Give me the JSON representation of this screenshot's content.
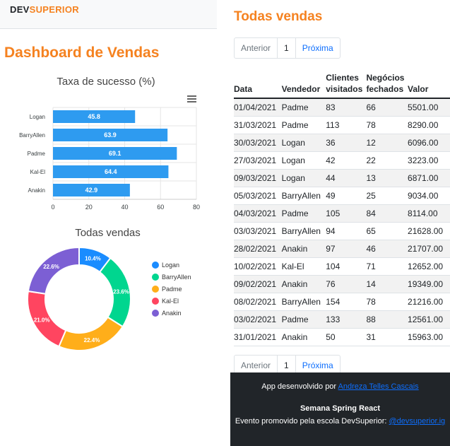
{
  "navbar": {
    "brand_dev": "DEV",
    "brand_superior": "SUPERIOR"
  },
  "dashboard": {
    "title": "Dashboard de Vendas"
  },
  "success_chart": {
    "title": "Taxa de sucesso (%)",
    "menu_icon": "hamburger-menu-icon",
    "bar_color": "#2e9bf0"
  },
  "donut_chart": {
    "title": "Todas vendas"
  },
  "chart_data": [
    {
      "type": "bar",
      "orientation": "horizontal",
      "title": "Taxa de sucesso (%)",
      "categories": [
        "Logan",
        "BarryAllen",
        "Padme",
        "Kal-El",
        "Anakin"
      ],
      "values": [
        45.8,
        63.9,
        69.1,
        64.4,
        42.9
      ],
      "xlim": [
        0,
        80
      ],
      "xticks": [
        0,
        20,
        40,
        60,
        80
      ],
      "grid": true,
      "color": "#2e9bf0"
    },
    {
      "type": "pie",
      "variant": "donut",
      "title": "Todas vendas",
      "labels": [
        "Logan",
        "BarryAllen",
        "Padme",
        "Kal-El",
        "Anakin"
      ],
      "values": [
        10.4,
        23.6,
        22.4,
        21.0,
        22.6
      ],
      "value_labels": [
        "10.4%",
        "23.6%",
        "22.4%",
        "21.0%",
        "22.6%"
      ],
      "colors": [
        "#1a8cff",
        "#00d68f",
        "#ffae1a",
        "#ff4560",
        "#7c5fd4"
      ],
      "legend": "right"
    }
  ],
  "sales": {
    "title": "Todas vendas",
    "pager": {
      "prev": "Anterior",
      "page": "1",
      "next": "Próxima"
    },
    "columns": [
      "Data",
      "Vendedor",
      "Clientes visitados",
      "Negócios fechados",
      "Valor"
    ],
    "rows": [
      [
        "01/04/2021",
        "Padme",
        "83",
        "66",
        "5501.00"
      ],
      [
        "31/03/2021",
        "Padme",
        "113",
        "78",
        "8290.00"
      ],
      [
        "30/03/2021",
        "Logan",
        "36",
        "12",
        "6096.00"
      ],
      [
        "27/03/2021",
        "Logan",
        "42",
        "22",
        "3223.00"
      ],
      [
        "09/03/2021",
        "Logan",
        "44",
        "13",
        "6871.00"
      ],
      [
        "05/03/2021",
        "BarryAllen",
        "49",
        "25",
        "9034.00"
      ],
      [
        "04/03/2021",
        "Padme",
        "105",
        "84",
        "8114.00"
      ],
      [
        "03/03/2021",
        "BarryAllen",
        "94",
        "65",
        "21628.00"
      ],
      [
        "28/02/2021",
        "Anakin",
        "97",
        "46",
        "21707.00"
      ],
      [
        "10/02/2021",
        "Kal-El",
        "104",
        "71",
        "12652.00"
      ],
      [
        "09/02/2021",
        "Anakin",
        "76",
        "14",
        "19349.00"
      ],
      [
        "08/02/2021",
        "BarryAllen",
        "154",
        "78",
        "21216.00"
      ],
      [
        "03/02/2021",
        "Padme",
        "133",
        "88",
        "12561.00"
      ],
      [
        "31/01/2021",
        "Anakin",
        "50",
        "31",
        "15963.00"
      ]
    ]
  },
  "footer": {
    "line1_text": "App desenvolvido por ",
    "line1_link": "Andreza Telles Cascais",
    "line2": "Semana Spring React",
    "line3_text": "Evento promovido pela escola DevSuperior: ",
    "line3_link": "@devsuperior.ig"
  },
  "colors": {
    "accent": "#f58220",
    "link": "#0d6efd",
    "footer_bg": "#212529"
  }
}
